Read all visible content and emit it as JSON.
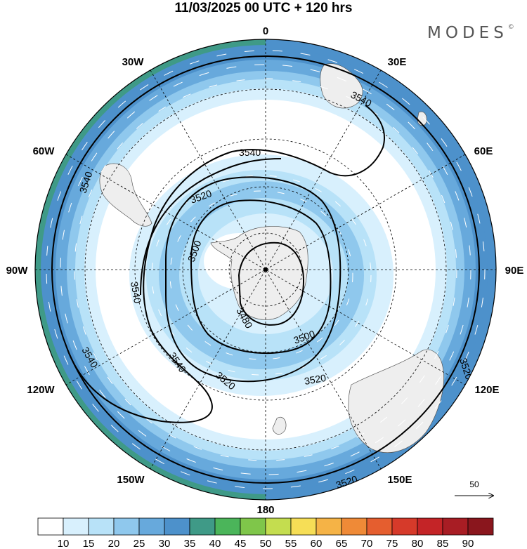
{
  "title": "11/03/2025  00 UTC  + 120 hrs",
  "brand": {
    "name": "MODES",
    "mark": "©"
  },
  "longitude_labels": {
    "n": "0",
    "ne30": "30E",
    "e60": "60E",
    "e90": "90E",
    "e120": "120E",
    "e150": "150E",
    "s": "180",
    "w150": "150W",
    "w120": "120W",
    "w90": "90W",
    "w60": "60W",
    "w30": "30W"
  },
  "contour_labels": {
    "c1": "3540",
    "c2": "3540",
    "c3": "3520",
    "c4": "3500",
    "c5": "3540",
    "c6": "3480",
    "c7": "3500",
    "c8": "3520",
    "c9": "3520",
    "c10": "3540",
    "c11": "3540",
    "c12": "3520",
    "c13": "3520",
    "c14": "3540"
  },
  "reference_vector": {
    "label": "50"
  },
  "colorbar": {
    "colors": [
      "#ffffff",
      "#d8f0fd",
      "#b8e2f8",
      "#8fc8ed",
      "#67a9dc",
      "#4d91cb",
      "#3f9a87",
      "#4bb55a",
      "#7fc64a",
      "#c4dd4f",
      "#f6de56",
      "#f5b346",
      "#ef8a37",
      "#e55e2f",
      "#d63a2a",
      "#c42427",
      "#a81d24",
      "#8a161d"
    ],
    "labels": [
      "10",
      "15",
      "20",
      "25",
      "30",
      "35",
      "40",
      "45",
      "50",
      "55",
      "60",
      "65",
      "70",
      "75",
      "80",
      "85",
      "90"
    ]
  }
}
